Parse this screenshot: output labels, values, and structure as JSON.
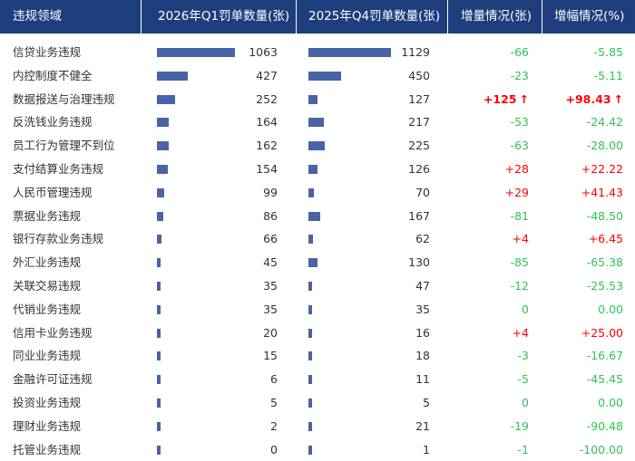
{
  "chart_data": {
    "type": "table",
    "columns": [
      "违规领域",
      "2026年Q1罚单数量(张)",
      "2025年Q4罚单数量(张)",
      "增量情况(张)",
      "增幅情况(%)"
    ],
    "rows": [
      {
        "category": "信贷业务违规",
        "q1": "1063",
        "q4": "1129",
        "delta": "-66",
        "pct": "-5.85",
        "q1v": 1063,
        "q4v": 1129,
        "dir": "neg",
        "highlight": false
      },
      {
        "category": "内控制度不健全",
        "q1": "427",
        "q4": "450",
        "delta": "-23",
        "pct": "-5.11",
        "q1v": 427,
        "q4v": 450,
        "dir": "neg",
        "highlight": false
      },
      {
        "category": "数据报送与治理违规",
        "q1": "252",
        "q4": "127",
        "delta": "+125",
        "pct": "+98.43",
        "q1v": 252,
        "q4v": 127,
        "dir": "pos",
        "highlight": true
      },
      {
        "category": "反洗钱业务违规",
        "q1": "164",
        "q4": "217",
        "delta": "-53",
        "pct": "-24.42",
        "q1v": 164,
        "q4v": 217,
        "dir": "neg",
        "highlight": false
      },
      {
        "category": "员工行为管理不到位",
        "q1": "162",
        "q4": "225",
        "delta": "-63",
        "pct": "-28.00",
        "q1v": 162,
        "q4v": 225,
        "dir": "neg",
        "highlight": false
      },
      {
        "category": "支付结算业务违规",
        "q1": "154",
        "q4": "126",
        "delta": "+28",
        "pct": "+22.22",
        "q1v": 154,
        "q4v": 126,
        "dir": "pos",
        "highlight": false
      },
      {
        "category": "人民币管理违规",
        "q1": "99",
        "q4": "70",
        "delta": "+29",
        "pct": "+41.43",
        "q1v": 99,
        "q4v": 70,
        "dir": "pos",
        "highlight": false
      },
      {
        "category": "票据业务违规",
        "q1": "86",
        "q4": "167",
        "delta": "-81",
        "pct": "-48.50",
        "q1v": 86,
        "q4v": 167,
        "dir": "neg",
        "highlight": false
      },
      {
        "category": "银行存款业务违规",
        "q1": "66",
        "q4": "62",
        "delta": "+4",
        "pct": "+6.45",
        "q1v": 66,
        "q4v": 62,
        "dir": "pos",
        "highlight": false
      },
      {
        "category": "外汇业务违规",
        "q1": "45",
        "q4": "130",
        "delta": "-85",
        "pct": "-65.38",
        "q1v": 45,
        "q4v": 130,
        "dir": "neg",
        "highlight": false
      },
      {
        "category": "关联交易违规",
        "q1": "35",
        "q4": "47",
        "delta": "-12",
        "pct": "-25.53",
        "q1v": 35,
        "q4v": 47,
        "dir": "neg",
        "highlight": false
      },
      {
        "category": "代销业务违规",
        "q1": "35",
        "q4": "35",
        "delta": "0",
        "pct": "0.00",
        "q1v": 35,
        "q4v": 35,
        "dir": "zero",
        "highlight": false
      },
      {
        "category": "信用卡业务违规",
        "q1": "20",
        "q4": "16",
        "delta": "+4",
        "pct": "+25.00",
        "q1v": 20,
        "q4v": 16,
        "dir": "pos",
        "highlight": false
      },
      {
        "category": "同业业务违规",
        "q1": "15",
        "q4": "18",
        "delta": "-3",
        "pct": "-16.67",
        "q1v": 15,
        "q4v": 18,
        "dir": "neg",
        "highlight": false
      },
      {
        "category": "金融许可证违规",
        "q1": "6",
        "q4": "11",
        "delta": "-5",
        "pct": "-45.45",
        "q1v": 6,
        "q4v": 11,
        "dir": "neg",
        "highlight": false
      },
      {
        "category": "投资业务违规",
        "q1": "5",
        "q4": "5",
        "delta": "0",
        "pct": "0.00",
        "q1v": 5,
        "q4v": 5,
        "dir": "zero",
        "highlight": false
      },
      {
        "category": "理财业务违规",
        "q1": "2",
        "q4": "21",
        "delta": "-19",
        "pct": "-90.48",
        "q1v": 2,
        "q4v": 21,
        "dir": "neg",
        "highlight": false
      },
      {
        "category": "托管业务违规",
        "q1": "0",
        "q4": "1",
        "delta": "-1",
        "pct": "-100.00",
        "q1v": 0,
        "q4v": 1,
        "dir": "neg",
        "highlight": false
      }
    ],
    "bar_max": 1129,
    "highlight_arrow": "↑",
    "colors": {
      "header_bg": "#1f3e7d",
      "bar": "#4a63a6",
      "increase": "#ff0000",
      "decrease": "#2ec458"
    }
  }
}
